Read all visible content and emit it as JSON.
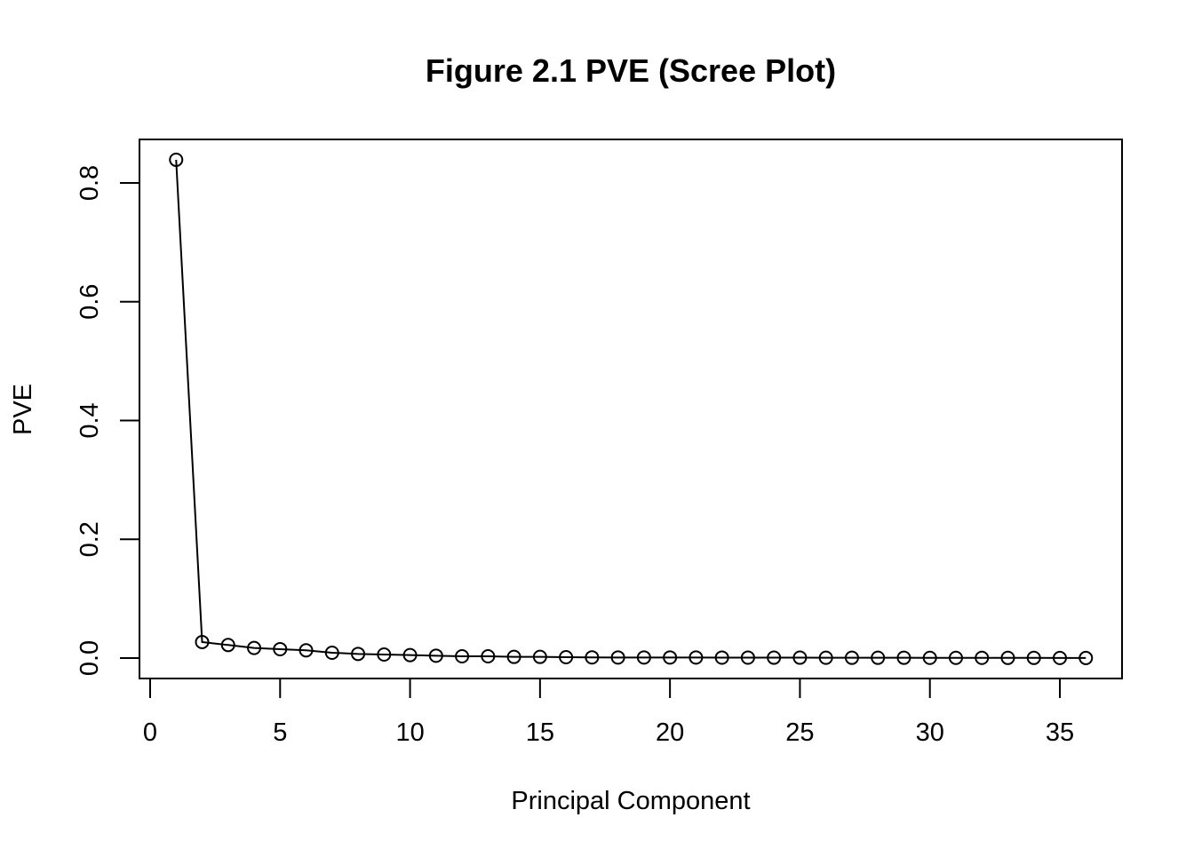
{
  "chart_data": {
    "type": "line",
    "title": "Figure 2.1 PVE (Scree Plot)",
    "xlabel": "Principal Component",
    "ylabel": "PVE",
    "xlim": [
      0,
      36
    ],
    "ylim": [
      0,
      0.84
    ],
    "x_ticks": [
      0,
      5,
      10,
      15,
      20,
      25,
      30,
      35
    ],
    "x_tick_labels": [
      "0",
      "5",
      "10",
      "15",
      "20",
      "25",
      "30",
      "35"
    ],
    "y_ticks": [
      0,
      0.2,
      0.4,
      0.6,
      0.8
    ],
    "y_tick_labels": [
      "0.0",
      "0.2",
      "0.4",
      "0.6",
      "0.8"
    ],
    "grid": false,
    "marker": "open-circle",
    "series": [
      {
        "x": [
          1,
          2,
          3,
          4,
          5,
          6,
          7,
          8,
          9,
          10,
          11,
          12,
          13,
          14,
          15,
          16,
          17,
          18,
          19,
          20,
          21,
          22,
          23,
          24,
          25,
          26,
          27,
          28,
          29,
          30,
          31,
          32,
          33,
          34,
          35,
          36
        ],
        "values": [
          0.839,
          0.027,
          0.022,
          0.017,
          0.015,
          0.013,
          0.009,
          0.007,
          0.006,
          0.005,
          0.004,
          0.003,
          0.003,
          0.002,
          0.002,
          0.0015,
          0.0012,
          0.001,
          0.001,
          0.001,
          0.001,
          0.0008,
          0.0008,
          0.0007,
          0.0007,
          0.0006,
          0.0005,
          0.0005,
          0.0005,
          0.0004,
          0.0004,
          0.0004,
          0.0003,
          0.0003,
          0.0002,
          0.0001
        ]
      }
    ],
    "colors": {
      "line": "#000000",
      "marker": "#000000",
      "background": "#ffffff"
    }
  }
}
